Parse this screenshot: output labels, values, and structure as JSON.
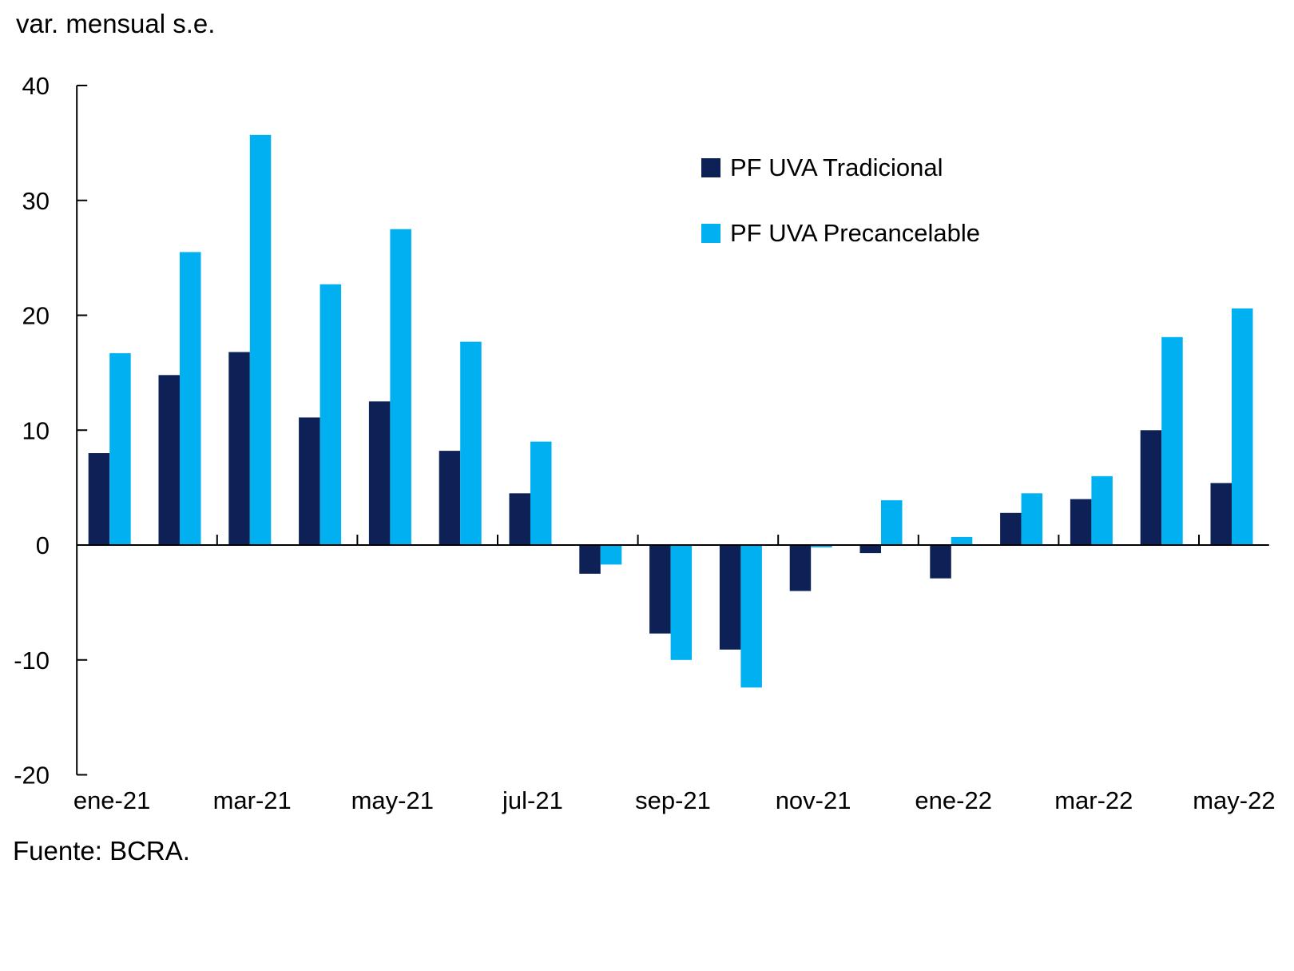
{
  "page": {
    "title": "var. mensual s.e.",
    "source": "Fuente: BCRA."
  },
  "chart_data": {
    "type": "bar",
    "title": "var. mensual s.e.",
    "xlabel": "",
    "ylabel": "var. mensual s.e.",
    "source": "Fuente: BCRA.",
    "categories": [
      "ene-21",
      "feb-21",
      "mar-21",
      "abr-21",
      "may-21",
      "jun-21",
      "jul-21",
      "ago-21",
      "sep-21",
      "oct-21",
      "nov-21",
      "dic-21",
      "ene-22",
      "feb-22",
      "mar-22",
      "abr-22",
      "may-22"
    ],
    "x_tick_labels_shown": [
      "ene-21",
      "mar-21",
      "may-21",
      "jul-21",
      "sep-21",
      "nov-21",
      "ene-22",
      "mar-22",
      "may-22"
    ],
    "series": [
      {
        "name": "PF UVA Tradicional",
        "color": "#0E2157",
        "values": [
          8.0,
          14.8,
          16.8,
          11.1,
          12.5,
          8.2,
          4.5,
          -2.5,
          -7.7,
          -9.1,
          -4.0,
          -0.7,
          -2.9,
          2.8,
          4.0,
          10.0,
          5.4
        ]
      },
      {
        "name": "PF UVA Precancelable",
        "color": "#00B0F0",
        "values": [
          16.7,
          25.5,
          35.7,
          22.7,
          27.5,
          17.7,
          9.0,
          -1.7,
          -10.0,
          -12.4,
          -0.2,
          3.9,
          0.7,
          4.5,
          6.0,
          18.1,
          20.6
        ]
      }
    ],
    "ylim": [
      -20,
      40
    ],
    "y_ticks": [
      40,
      30,
      20,
      10,
      0,
      -10,
      -20
    ],
    "grid": false,
    "legend_position": "upper right",
    "axis_color": "#000000",
    "text_color": "#000000"
  }
}
